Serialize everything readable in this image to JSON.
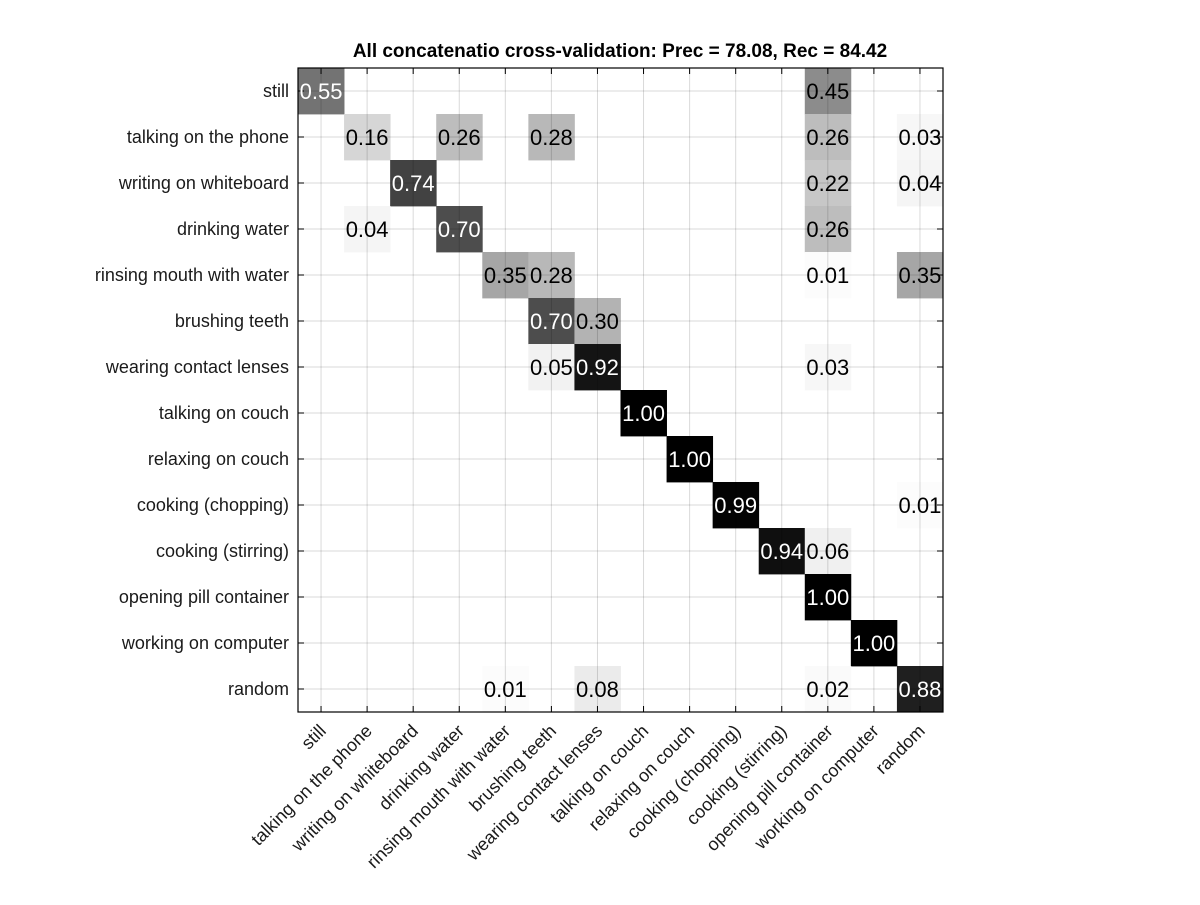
{
  "chart_data": {
    "type": "heatmap",
    "title": "All concatenatio cross-validation: Prec = 78.08, Rec = 84.42",
    "xlabel": "",
    "ylabel": "",
    "colormap": "gray-reversed",
    "value_range": [
      0,
      1
    ],
    "grid": true,
    "row_labels": [
      "still",
      "talking on the phone",
      "writing on whiteboard",
      "drinking water",
      "rinsing mouth with water",
      "brushing teeth",
      "wearing contact lenses",
      "talking on couch",
      "relaxing on couch",
      "cooking (chopping)",
      "cooking (stirring)",
      "opening pill container",
      "working on computer",
      "random"
    ],
    "col_labels": [
      "still",
      "talking on the phone",
      "writing on whiteboard",
      "drinking water",
      "rinsing mouth with water",
      "brushing teeth",
      "wearing contact lenses",
      "talking on couch",
      "relaxing on couch",
      "cooking (chopping)",
      "cooking (stirring)",
      "opening pill container",
      "working on computer",
      "random"
    ],
    "cells": [
      {
        "row": 0,
        "col": 0,
        "value": 0.55,
        "label": "0.55"
      },
      {
        "row": 0,
        "col": 11,
        "value": 0.45,
        "label": "0.45"
      },
      {
        "row": 1,
        "col": 1,
        "value": 0.16,
        "label": "0.16"
      },
      {
        "row": 1,
        "col": 3,
        "value": 0.26,
        "label": "0.26"
      },
      {
        "row": 1,
        "col": 5,
        "value": 0.28,
        "label": "0.28"
      },
      {
        "row": 1,
        "col": 11,
        "value": 0.26,
        "label": "0.26"
      },
      {
        "row": 1,
        "col": 13,
        "value": 0.03,
        "label": "0.03"
      },
      {
        "row": 2,
        "col": 2,
        "value": 0.74,
        "label": "0.74"
      },
      {
        "row": 2,
        "col": 11,
        "value": 0.22,
        "label": "0.22"
      },
      {
        "row": 2,
        "col": 13,
        "value": 0.04,
        "label": "0.04"
      },
      {
        "row": 3,
        "col": 1,
        "value": 0.04,
        "label": "0.04"
      },
      {
        "row": 3,
        "col": 3,
        "value": 0.7,
        "label": "0.70"
      },
      {
        "row": 3,
        "col": 11,
        "value": 0.26,
        "label": "0.26"
      },
      {
        "row": 4,
        "col": 4,
        "value": 0.35,
        "label": "0.35"
      },
      {
        "row": 4,
        "col": 5,
        "value": 0.28,
        "label": "0.28"
      },
      {
        "row": 4,
        "col": 11,
        "value": 0.01,
        "label": "0.01"
      },
      {
        "row": 4,
        "col": 13,
        "value": 0.35,
        "label": "0.35"
      },
      {
        "row": 5,
        "col": 5,
        "value": 0.7,
        "label": "0.70"
      },
      {
        "row": 5,
        "col": 6,
        "value": 0.3,
        "label": "0.30"
      },
      {
        "row": 6,
        "col": 5,
        "value": 0.05,
        "label": "0.05"
      },
      {
        "row": 6,
        "col": 6,
        "value": 0.92,
        "label": "0.92"
      },
      {
        "row": 6,
        "col": 11,
        "value": 0.03,
        "label": "0.03"
      },
      {
        "row": 7,
        "col": 7,
        "value": 1.0,
        "label": "1.00"
      },
      {
        "row": 8,
        "col": 8,
        "value": 1.0,
        "label": "1.00"
      },
      {
        "row": 9,
        "col": 9,
        "value": 0.99,
        "label": "0.99"
      },
      {
        "row": 9,
        "col": 13,
        "value": 0.01,
        "label": "0.01"
      },
      {
        "row": 10,
        "col": 10,
        "value": 0.94,
        "label": "0.94"
      },
      {
        "row": 10,
        "col": 11,
        "value": 0.06,
        "label": "0.06"
      },
      {
        "row": 11,
        "col": 11,
        "value": 1.0,
        "label": "1.00"
      },
      {
        "row": 12,
        "col": 12,
        "value": 1.0,
        "label": "1.00"
      },
      {
        "row": 13,
        "col": 4,
        "value": 0.01,
        "label": "0.01"
      },
      {
        "row": 13,
        "col": 6,
        "value": 0.08,
        "label": "0.08"
      },
      {
        "row": 13,
        "col": 11,
        "value": 0.02,
        "label": "0.02"
      },
      {
        "row": 13,
        "col": 13,
        "value": 0.88,
        "label": "0.88"
      }
    ]
  }
}
